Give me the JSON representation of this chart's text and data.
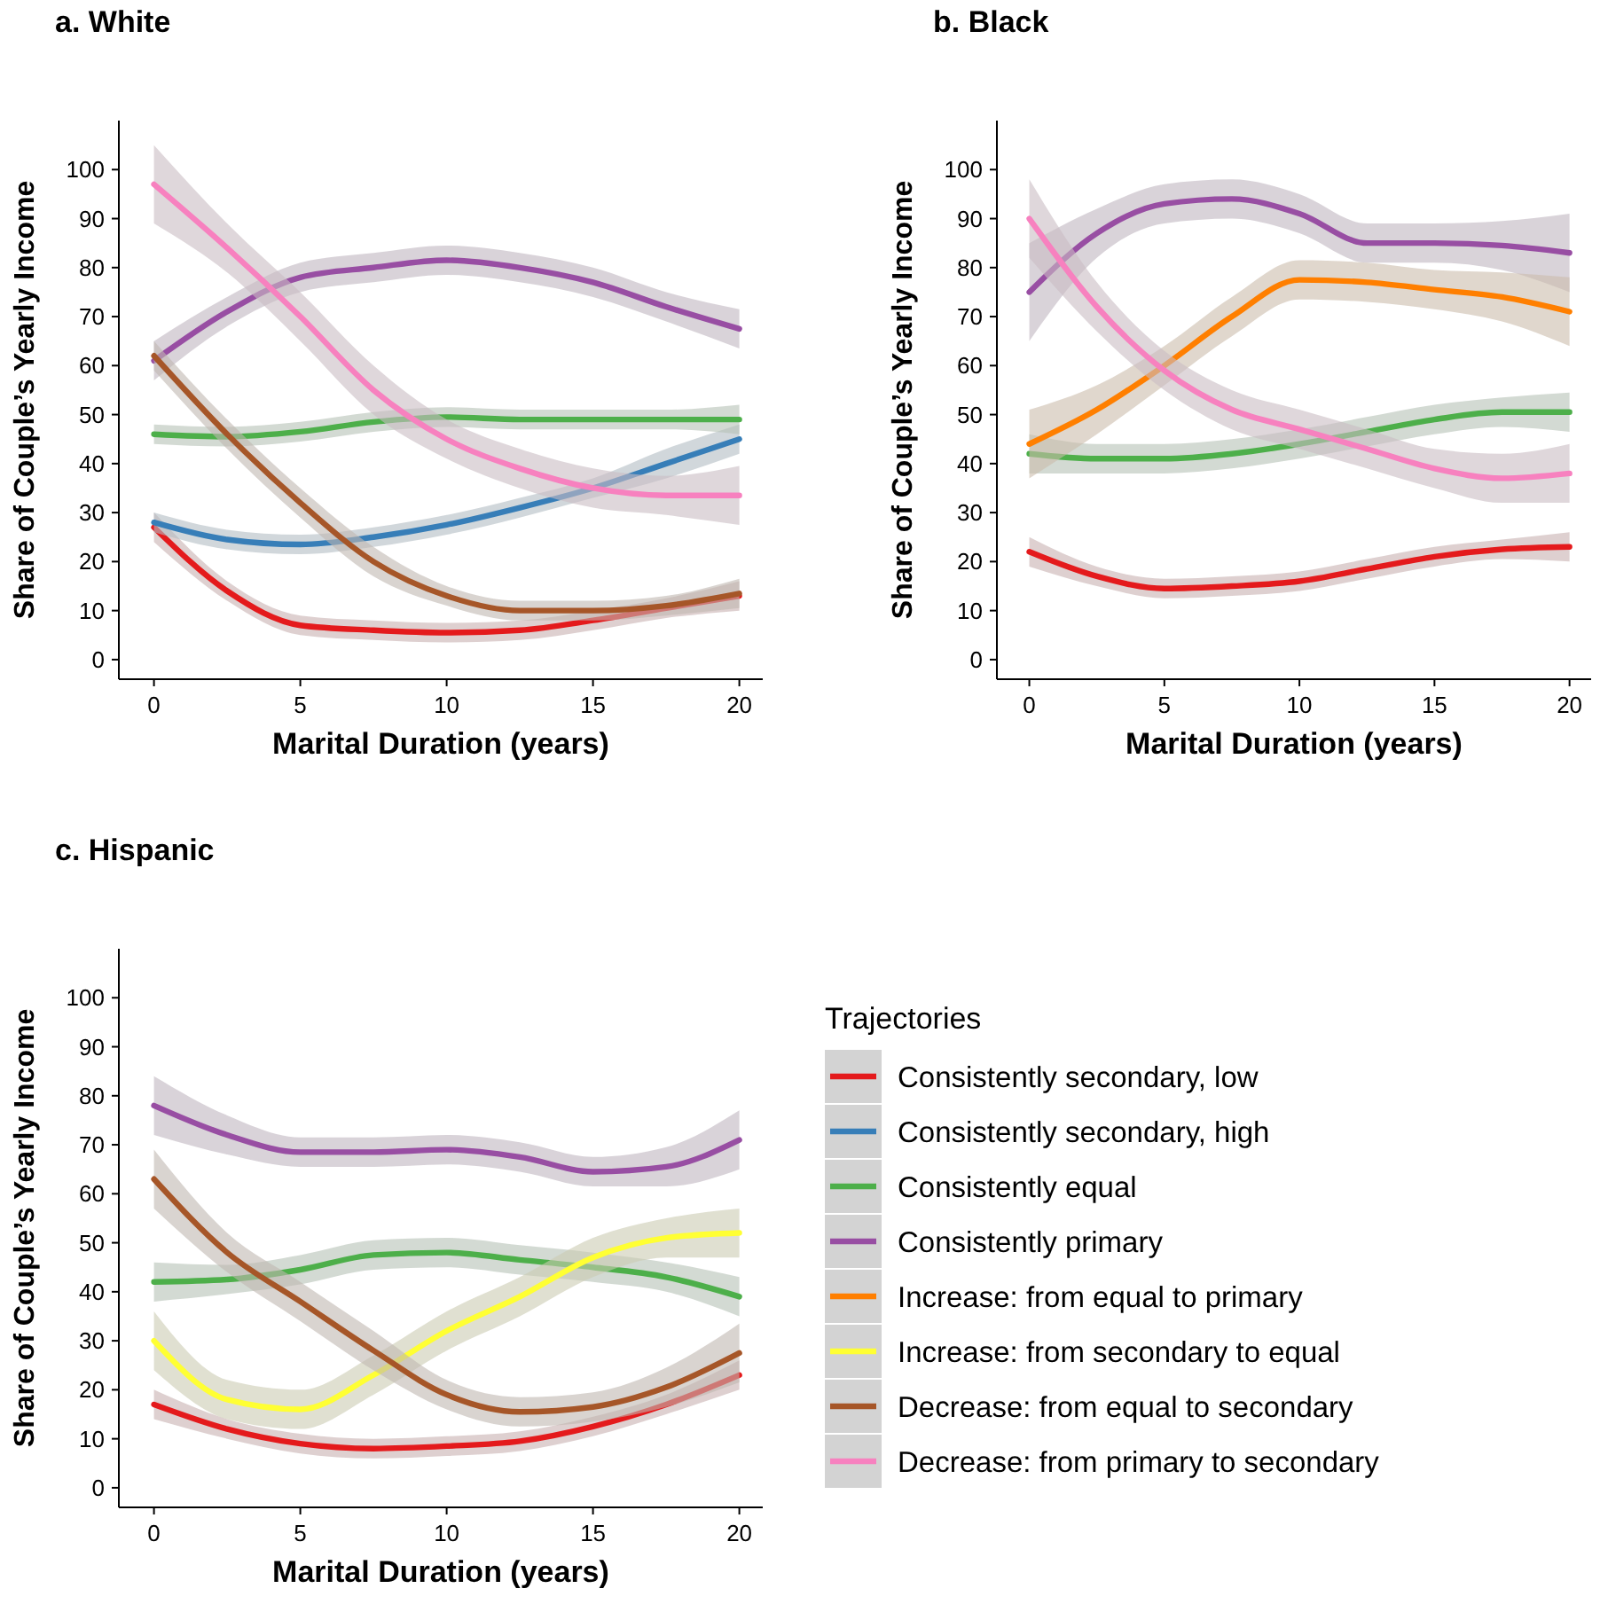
{
  "chart_data": [
    {
      "type": "line",
      "title": "a. White",
      "xlabel": "Marital Duration (years)",
      "ylabel": "Share of Couple’s Yearly Income",
      "xlim": [
        -1.2,
        20.8
      ],
      "ylim": [
        -4,
        110
      ],
      "xticks": [
        0,
        5,
        10,
        15,
        20
      ],
      "yticks": [
        0,
        10,
        20,
        30,
        40,
        50,
        60,
        70,
        80,
        90,
        100
      ],
      "grid": false,
      "legend": false,
      "x": [
        0,
        2.5,
        5,
        7.5,
        10,
        12.5,
        15,
        17.5,
        20
      ],
      "series": [
        {
          "color": "#e41a1c",
          "values": [
            27,
            14,
            7,
            6,
            5.5,
            6,
            8,
            10.5,
            13
          ],
          "lower": [
            24,
            12,
            5,
            4,
            3.5,
            4,
            6,
            8.5,
            10
          ],
          "upper": [
            30,
            16,
            9,
            8,
            7.5,
            8,
            10,
            12.5,
            16
          ]
        },
        {
          "color": "#377eb8",
          "values": [
            28,
            24.5,
            23.5,
            25,
            27.5,
            31,
            35,
            40,
            45
          ],
          "lower": [
            26,
            22.5,
            21.5,
            23,
            25.5,
            29,
            33,
            37,
            42
          ],
          "upper": [
            30,
            26.5,
            25.5,
            27,
            29.5,
            33,
            37,
            43,
            48
          ]
        },
        {
          "color": "#4daf4a",
          "values": [
            46,
            45.5,
            46.5,
            48.5,
            49.5,
            49,
            49,
            49,
            49
          ],
          "lower": [
            44,
            43.5,
            44.5,
            46.5,
            47.5,
            47,
            47,
            47,
            46
          ],
          "upper": [
            48,
            47.5,
            48.5,
            50.5,
            51.5,
            51,
            51,
            51,
            52
          ]
        },
        {
          "color": "#984ea3",
          "values": [
            61,
            71,
            78,
            80,
            81.5,
            80,
            77,
            72,
            67.5
          ],
          "lower": [
            57,
            68,
            75,
            77,
            78.5,
            77,
            74,
            69,
            63.5
          ],
          "upper": [
            65,
            74,
            81,
            83,
            84.5,
            83,
            80,
            75,
            71.5
          ]
        },
        {
          "color": "#a65628",
          "values": [
            62,
            46,
            32,
            20,
            13,
            10,
            10,
            11,
            13.5
          ],
          "lower": [
            59,
            43,
            29,
            17,
            11,
            8,
            8,
            9,
            10.5
          ],
          "upper": [
            65,
            49,
            35,
            23,
            15,
            12,
            12,
            13,
            16.5
          ]
        },
        {
          "color": "#f781bf",
          "values": [
            97,
            84,
            70,
            55,
            45,
            39,
            35,
            33.5,
            33.5
          ],
          "lower": [
            89,
            79,
            65,
            50,
            41,
            35,
            31,
            29.5,
            27.5
          ],
          "upper": [
            105,
            89,
            75,
            60,
            49,
            43,
            39,
            37.5,
            39.5
          ]
        }
      ]
    },
    {
      "type": "line",
      "title": "b. Black",
      "xlabel": "Marital Duration (years)",
      "ylabel": "Share of Couple’s Yearly Income",
      "xlim": [
        -1.2,
        20.8
      ],
      "ylim": [
        -4,
        110
      ],
      "xticks": [
        0,
        5,
        10,
        15,
        20
      ],
      "yticks": [
        0,
        10,
        20,
        30,
        40,
        50,
        60,
        70,
        80,
        90,
        100
      ],
      "grid": false,
      "legend": false,
      "x": [
        0,
        2.5,
        5,
        7.5,
        10,
        12.5,
        15,
        17.5,
        20
      ],
      "series": [
        {
          "color": "#e41a1c",
          "values": [
            22,
            17,
            14.5,
            15,
            16,
            18.5,
            21,
            22.5,
            23
          ],
          "lower": [
            19,
            15,
            12.5,
            13,
            14,
            16.5,
            19,
            20.5,
            20
          ],
          "upper": [
            25,
            19,
            16.5,
            17,
            18,
            20.5,
            23,
            24.5,
            26
          ]
        },
        {
          "color": "#4daf4a",
          "values": [
            42,
            41,
            41,
            42,
            44,
            46.5,
            49,
            50.5,
            50.5
          ],
          "lower": [
            38,
            38,
            38,
            39,
            41,
            43.5,
            46,
            47.5,
            46.5
          ],
          "upper": [
            46,
            44,
            44,
            45,
            47,
            49.5,
            52,
            53.5,
            54.5
          ]
        },
        {
          "color": "#984ea3",
          "values": [
            75,
            87,
            93,
            94,
            91,
            85,
            85,
            84.5,
            83
          ],
          "lower": [
            65,
            82,
            89,
            90,
            87,
            81,
            81,
            79.5,
            75
          ],
          "upper": [
            85,
            92,
            97,
            98,
            95,
            89,
            89,
            89.5,
            91
          ]
        },
        {
          "color": "#ff7f00",
          "values": [
            44,
            51,
            60,
            70,
            77.5,
            77,
            75.5,
            74,
            71
          ],
          "lower": [
            37,
            46,
            56,
            66,
            73.5,
            73,
            71.5,
            69,
            64
          ],
          "upper": [
            51,
            56,
            64,
            74,
            81.5,
            81,
            79.5,
            79,
            78
          ]
        },
        {
          "color": "#f781bf",
          "values": [
            90,
            72,
            59,
            51,
            47,
            43,
            39,
            37,
            38
          ],
          "lower": [
            82,
            67,
            55,
            47,
            43,
            39,
            35,
            32,
            32
          ],
          "upper": [
            98,
            77,
            63,
            55,
            51,
            47,
            43,
            42,
            44
          ]
        }
      ]
    },
    {
      "type": "line",
      "title": "c. Hispanic",
      "xlabel": "Marital Duration (years)",
      "ylabel": "Share of Couple’s Yearly Income",
      "xlim": [
        -1.2,
        20.8
      ],
      "ylim": [
        -4,
        110
      ],
      "xticks": [
        0,
        5,
        10,
        15,
        20
      ],
      "yticks": [
        0,
        10,
        20,
        30,
        40,
        50,
        60,
        70,
        80,
        90,
        100
      ],
      "grid": false,
      "legend": "right",
      "legend_title": "Trajectories",
      "x": [
        0,
        2.5,
        5,
        7.5,
        10,
        12.5,
        15,
        17.5,
        20
      ],
      "series": [
        {
          "name": "Consistently secondary, low",
          "color": "#e41a1c",
          "values": [
            17,
            12,
            9,
            8,
            8.5,
            9.5,
            12.5,
            17,
            23
          ],
          "lower": [
            14,
            10,
            7,
            6,
            6.5,
            7.5,
            10.5,
            15,
            20
          ],
          "upper": [
            20,
            14,
            11,
            10,
            10.5,
            11.5,
            14.5,
            19,
            26
          ]
        },
        {
          "name": "Consistently secondary, high",
          "color": "#377eb8",
          "values": [
            null,
            null,
            null,
            null,
            null,
            null,
            null,
            null,
            null
          ]
        },
        {
          "name": "Consistently equal",
          "color": "#4daf4a",
          "values": [
            42,
            42.5,
            44.5,
            47.5,
            48,
            46.5,
            45,
            43,
            39
          ],
          "lower": [
            38,
            39.5,
            41.5,
            44.5,
            45,
            43.5,
            42,
            40,
            35
          ],
          "upper": [
            46,
            45.5,
            47.5,
            50.5,
            51,
            49.5,
            48,
            46,
            43
          ]
        },
        {
          "name": "Consistently primary",
          "color": "#984ea3",
          "values": [
            78,
            72,
            68.5,
            68.5,
            69,
            67.5,
            64.5,
            65.5,
            71
          ],
          "lower": [
            72,
            68,
            65.5,
            65.5,
            66,
            64.5,
            61.5,
            61.5,
            65
          ],
          "upper": [
            84,
            76,
            71.5,
            71.5,
            72,
            70.5,
            67.5,
            69.5,
            77
          ]
        },
        {
          "name": "Increase: from equal to primary",
          "color": "#ff7f00",
          "values": [
            null,
            null,
            null,
            null,
            null,
            null,
            null,
            null,
            null
          ]
        },
        {
          "name": "Increase: from secondary to equal",
          "color": "#ffff33",
          "values": [
            30,
            18,
            16,
            23,
            32,
            39,
            47,
            51,
            52
          ],
          "lower": [
            24,
            14,
            12,
            19,
            28,
            35,
            43,
            47,
            47
          ],
          "upper": [
            36,
            22,
            20,
            27,
            36,
            43,
            51,
            55,
            57
          ]
        },
        {
          "name": "Decrease: from equal to secondary",
          "color": "#a65628",
          "values": [
            63,
            48,
            38,
            28,
            19,
            15.5,
            16.5,
            20.5,
            27.5
          ],
          "lower": [
            57,
            44,
            34,
            24,
            16,
            12.5,
            13.5,
            16.5,
            21.5
          ],
          "upper": [
            69,
            52,
            42,
            32,
            22,
            18.5,
            19.5,
            24.5,
            33.5
          ]
        },
        {
          "name": "Decrease: from primary to secondary",
          "color": "#f781bf",
          "values": [
            null,
            null,
            null,
            null,
            null,
            null,
            null,
            null,
            null
          ]
        }
      ]
    }
  ]
}
